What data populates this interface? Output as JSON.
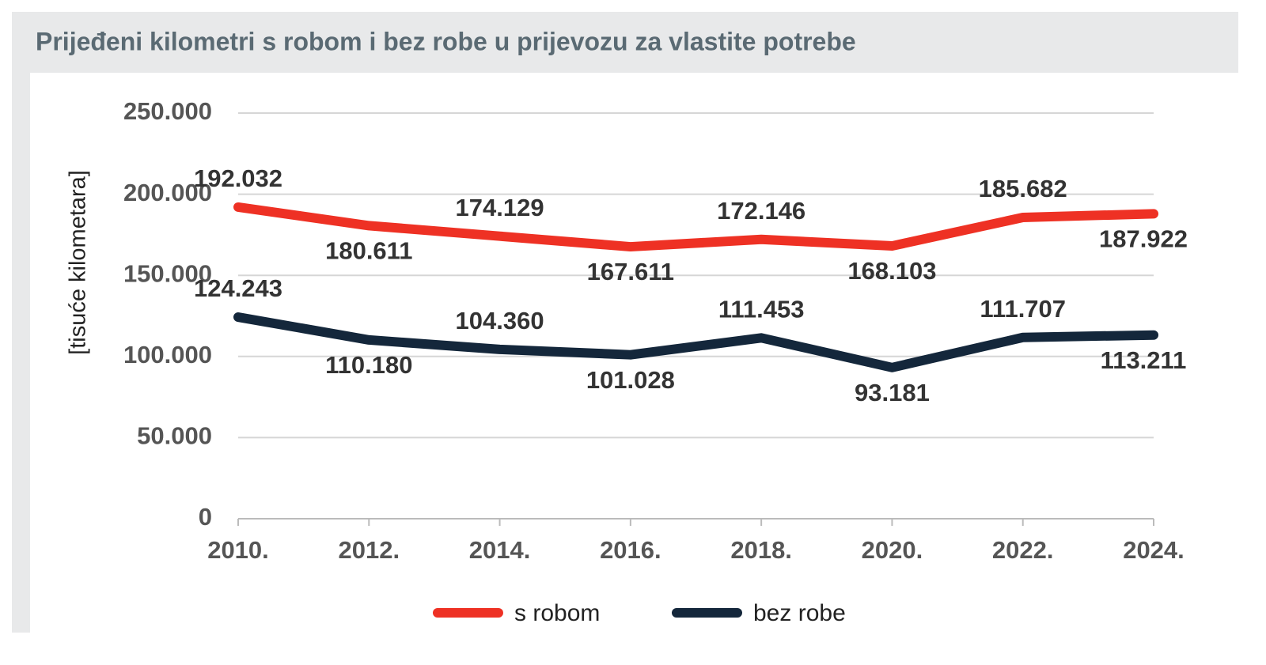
{
  "chart_data": {
    "type": "line",
    "title": "Prijeđeni kilometri s robom i bez robe u prijevozu za vlastite potrebe",
    "y_label": "[tisuće kilometara]",
    "categories": [
      "2010.",
      "2012.",
      "2014.",
      "2016.",
      "2018.",
      "2020.",
      "2022.",
      "2024."
    ],
    "series": [
      {
        "name": "s robom",
        "color": "#ee3124",
        "values": [
          192032,
          180611,
          174129,
          167611,
          172146,
          168103,
          185682,
          187922
        ],
        "value_labels": [
          "192.032",
          "180.611",
          "174.129",
          "167.611",
          "172.146",
          "168.103",
          "185.682",
          "187.922"
        ]
      },
      {
        "name": "bez robe",
        "color": "#14273b",
        "values": [
          124243,
          110180,
          104360,
          101028,
          111453,
          93181,
          111707,
          113211
        ],
        "value_labels": [
          "124.243",
          "110.180",
          "104.360",
          "101.028",
          "111.453",
          "93.181",
          "111.707",
          "113.211"
        ]
      }
    ],
    "ylim": [
      0,
      250000
    ],
    "yticks": [
      0,
      {
        "value": 50000,
        "label": "50.000"
      },
      {
        "value": 100000,
        "label": "100.000"
      },
      {
        "value": 150000,
        "label": "150.000"
      },
      {
        "value": 200000,
        "label": "200.000"
      },
      {
        "value": 250000,
        "label": "250.000"
      }
    ],
    "grid": true
  }
}
